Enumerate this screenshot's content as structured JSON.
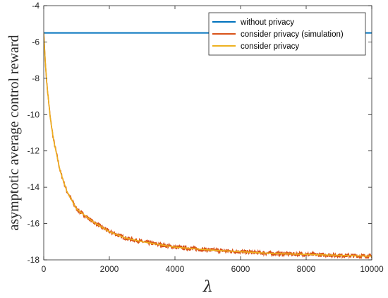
{
  "chart_data": {
    "type": "line",
    "title": "",
    "xlabel": "λ",
    "ylabel": "asymptotic average control reward",
    "xlim": [
      0,
      10000
    ],
    "ylim": [
      -18,
      -4
    ],
    "xticks": [
      0,
      2000,
      4000,
      6000,
      8000,
      10000
    ],
    "yticks": [
      -4,
      -6,
      -8,
      -10,
      -12,
      -14,
      -16,
      -18
    ],
    "grid": false,
    "legend_position": "top-right",
    "series": [
      {
        "name": "without privacy",
        "color": "#0072BD",
        "x": [
          0,
          10000
        ],
        "y": [
          -5.5,
          -5.5
        ]
      },
      {
        "name": "consider privacy (simulation)",
        "color": "#D95319",
        "x": [
          0,
          50,
          100,
          200,
          300,
          500,
          700,
          1000,
          1500,
          2000,
          2500,
          3000,
          4000,
          5000,
          6000,
          7000,
          8000,
          9000,
          10000
        ],
        "y": [
          -5.5,
          -7.2,
          -8.4,
          -10.2,
          -11.4,
          -13.1,
          -14.2,
          -15.2,
          -15.9,
          -16.45,
          -16.8,
          -17.0,
          -17.3,
          -17.45,
          -17.55,
          -17.65,
          -17.7,
          -17.75,
          -17.8
        ],
        "noisy": true
      },
      {
        "name": "consider privacy",
        "color": "#EDB120",
        "x": [
          0,
          50,
          100,
          200,
          300,
          500,
          700,
          1000,
          1500,
          2000,
          2500,
          3000,
          4000,
          5000,
          6000,
          7000,
          8000,
          9000,
          10000
        ],
        "y": [
          -5.5,
          -7.2,
          -8.4,
          -10.2,
          -11.4,
          -13.1,
          -14.2,
          -15.2,
          -15.9,
          -16.45,
          -16.8,
          -17.0,
          -17.3,
          -17.45,
          -17.55,
          -17.65,
          -17.7,
          -17.75,
          -17.8
        ]
      }
    ]
  }
}
